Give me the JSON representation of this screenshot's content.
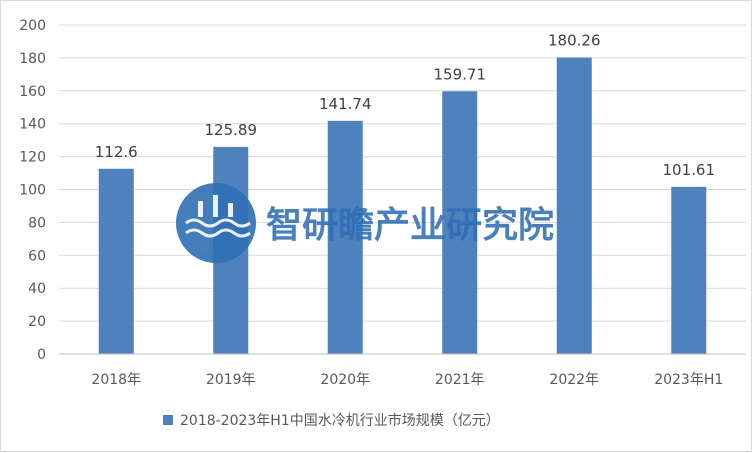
{
  "chart_data": {
    "type": "bar",
    "categories": [
      "2018年",
      "2019年",
      "2020年",
      "2021年",
      "2022年",
      "2023年H1"
    ],
    "series": [
      {
        "name": "2018-2023年H1中国水冷机行业市场规模（亿元）",
        "values": [
          112.6,
          125.89,
          141.74,
          159.71,
          180.26,
          101.61
        ]
      }
    ],
    "value_labels": [
      "112.6",
      "125.89",
      "141.74",
      "159.71",
      "180.26",
      "101.61"
    ],
    "yticks": [
      "0",
      "20",
      "40",
      "60",
      "80",
      "100",
      "120",
      "140",
      "160",
      "180",
      "200"
    ],
    "ylim": [
      0,
      200
    ],
    "grid": true,
    "legend_position": "bottom",
    "bar_color": "#4f81bd",
    "watermark": "智研瞻产业研究院"
  }
}
